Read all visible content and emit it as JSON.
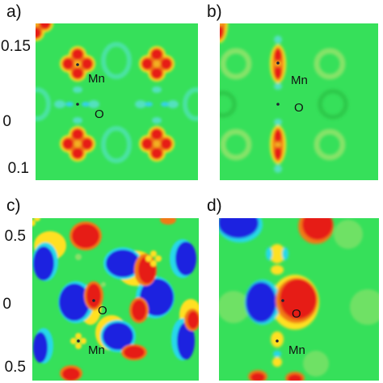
{
  "panels": [
    {
      "label": "a)",
      "atoms": [
        "Mn",
        "O"
      ]
    },
    {
      "label": "b)",
      "atoms": [
        "Mn",
        "O"
      ]
    },
    {
      "label": "c)",
      "atoms": [
        "O",
        "Mn"
      ]
    },
    {
      "label": "d)",
      "atoms": [
        "O",
        "Mn"
      ]
    }
  ],
  "top_ticks": [
    "0.15",
    "0",
    "0.1"
  ],
  "bottom_ticks": [
    "0.5",
    "0",
    "0.5"
  ],
  "colormap": {
    "background": "#36e05a",
    "positive_high": "#e61a12",
    "positive_mid": "#ffe020",
    "negative_high": "#1a22e0",
    "negative_mid": "#28d8e8"
  }
}
